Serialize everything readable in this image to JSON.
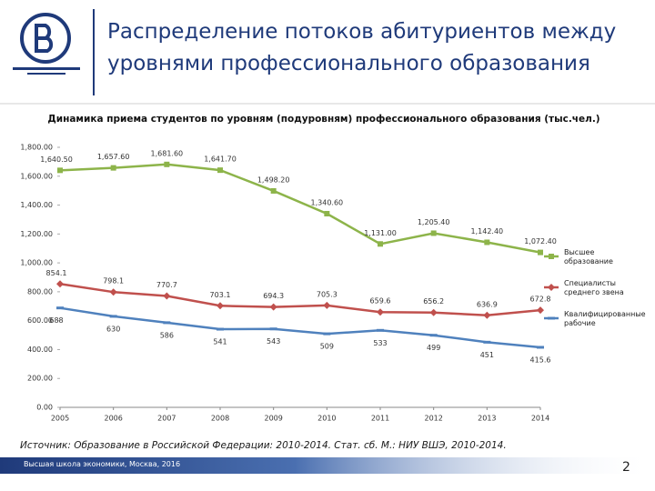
{
  "header": {
    "title": "Распределение потоков абитуриентов между уровнями профессионального образования"
  },
  "chart_data": {
    "type": "line",
    "title": "Динамика приема студентов по уровням (подуровням) профессионального образования (тыс.чел.)",
    "categories": [
      "2005",
      "2006",
      "2007",
      "2008",
      "2009",
      "2010",
      "2011",
      "2012",
      "2013",
      "2014"
    ],
    "series": [
      {
        "name": "Высшее образование",
        "color": "#8db44a",
        "marker": "square",
        "values": [
          1640.5,
          1657.6,
          1681.6,
          1641.7,
          1498.2,
          1340.6,
          1131.0,
          1205.4,
          1142.4,
          1072.4
        ],
        "value_labels": [
          "1,640.50",
          "1,657.60",
          "1,681.60",
          "1,641.70",
          "1,498.20",
          "1,340.60",
          "1,131.00",
          "1,205.40",
          "1,142.40",
          "1,072.40"
        ]
      },
      {
        "name": "Специалисты среднего звена",
        "color": "#c0504d",
        "marker": "diamond",
        "values": [
          854.1,
          798.1,
          770.7,
          703.1,
          694.3,
          705.3,
          659.6,
          656.2,
          636.9,
          672.8
        ]
      },
      {
        "name": "Квалифицированные рабочие",
        "color": "#4f81bd",
        "marker": "dash",
        "values": [
          688,
          630,
          586,
          541,
          543,
          509,
          533,
          499,
          451,
          415.6
        ]
      }
    ],
    "ylim": [
      0,
      1800
    ],
    "yticks": [
      {
        "value": 0,
        "label": "0.00"
      },
      {
        "value": 200,
        "label": "200.00"
      },
      {
        "value": 400,
        "label": "400.00"
      },
      {
        "value": 600,
        "label": "600.00"
      },
      {
        "value": 800,
        "label": "800.00"
      },
      {
        "value": 1000,
        "label": "1,000.00"
      },
      {
        "value": 1200,
        "label": "1,200.00"
      },
      {
        "value": 1400,
        "label": "1,400.00"
      },
      {
        "value": 1600,
        "label": "1,600.00"
      },
      {
        "value": 1800,
        "label": "1,800.00"
      }
    ],
    "grid": false,
    "legend": "right"
  },
  "source": "Источник: Образование в Российской Федерации: 2010-2014. Стат. сб. М.: НИУ ВШЭ, 2010-2014.",
  "footer": "Высшая школа экономики, Москва, 2016",
  "page_number": "2"
}
